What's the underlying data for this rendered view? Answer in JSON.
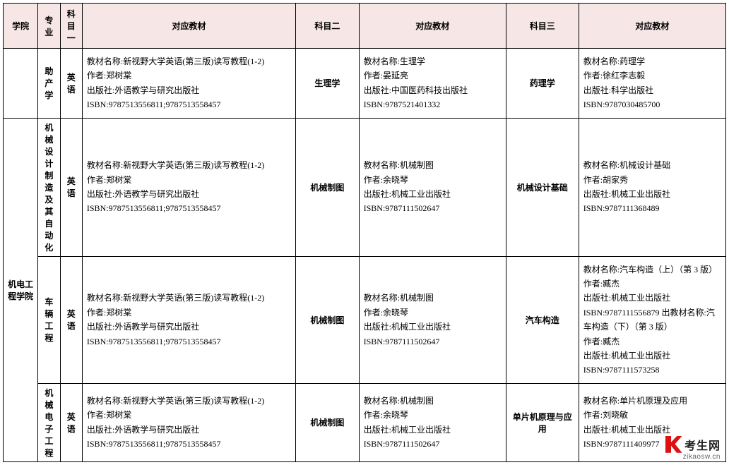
{
  "header": {
    "college": "学院",
    "major": "专业",
    "subject1": "科目一",
    "textbook1": "对应教材",
    "subject2": "科目二",
    "textbook2": "对应教材",
    "subject3": "科目三",
    "textbook3": "对应教材"
  },
  "college_name": "机电工程学院",
  "rows": [
    {
      "major": "助产学",
      "subject1": "英语",
      "textbook1": "教材名称:新视野大学英语(第三版)读写教程(1-2)\n作者:郑树棠\n出版社:外语教学与研究出版社\nISBN:9787513556811;9787513558457",
      "subject2": "生理学",
      "textbook2": "教材名称:生理学\n作者:晏延亮\n出版社:中国医药科技出版社\nISBN:9787521401332",
      "subject3": "药理学",
      "textbook3": "教材名称:药理学\n作者:徐红李志毅\n出版社:科学出版社\nISBN:9787030485700"
    },
    {
      "major": "机械设计制造及其自动化",
      "subject1": "英语",
      "textbook1": "教材名称:新视野大学英语(第三版)读写教程(1-2)\n作者:郑树棠\n出版社:外语教学与研究出版社\nISBN:9787513556811;9787513558457",
      "subject2": "机械制图",
      "textbook2": "教材名称:机械制图\n作者:余晓琴\n出版社:机械工业出版社\nISBN:9787111502647",
      "subject3": "机械设计基础",
      "textbook3": "教材名称:机械设计基础\n作者:胡家秀\n出版社:机械工业出版社\nISBN:9787111368489"
    },
    {
      "major": "车辆工程",
      "subject1": "英语",
      "textbook1": "教材名称:新视野大学英语(第三版)读写教程(1-2)\n作者:郑树棠\n出版社:外语教学与研究出版社\nISBN:9787513556811;9787513558457",
      "subject2": "机械制图",
      "textbook2": "教材名称:机械制图\n作者:余晓琴\n出版社:机械工业出版社\nISBN:9787111502647",
      "subject3": "汽车构造",
      "textbook3": "教材名称:汽车构造（上）（第 3 版）\n作者:臧杰\n出版社:机械工业出版社\nISBN:9787111556879 出教材名称:汽车构造（下）（第 3 版）\n作者:臧杰\n出版社:机械工业出版社\nISBN:9787111573258"
    },
    {
      "major": "机械电子工程",
      "subject1": "英语",
      "textbook1": "教材名称:新视野大学英语(第三版)读写教程(1-2)\n作者:郑树棠\n出版社:外语教学与研究出版社\nISBN:9787513556811;9787513558457",
      "subject2": "机械制图",
      "textbook2": "教材名称:机械制图\n作者:余晓琴\n出版社:机械工业出版社\nISBN:9787111502647",
      "subject3": "单片机原理与应用",
      "textbook3": "教材名称:单片机原理及应用\n作者:刘晓敏\n出版社:机械工业出版社\nISBN:9787111409977"
    }
  ],
  "watermark": {
    "brand": "考生网",
    "domain": "zikaosw.cn"
  },
  "colors": {
    "header_bg": "#f6e6e6",
    "border": "#000000",
    "logo_red": "#d11a1a"
  }
}
